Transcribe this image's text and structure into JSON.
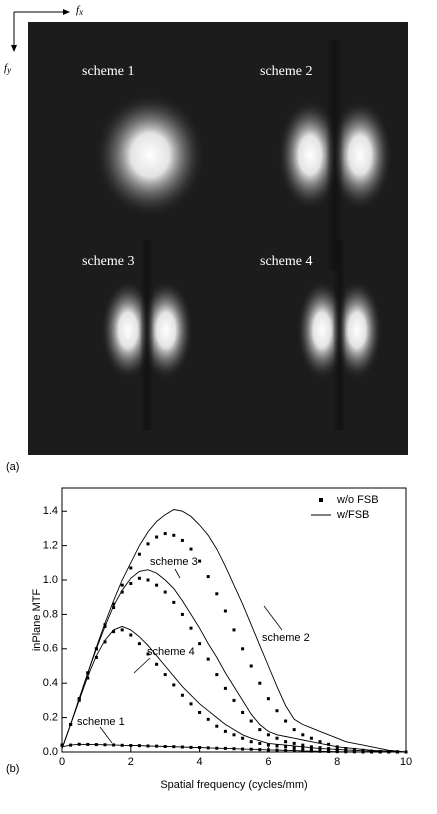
{
  "image_panel": {
    "label": "(a)",
    "x_axis": "f",
    "x_axis_sub": "x",
    "y_axis": "f",
    "y_axis_sub": "y",
    "schemes": [
      "scheme 1",
      "scheme 2",
      "scheme 3",
      "scheme 4"
    ]
  },
  "chart_data": {
    "type": "line",
    "panel_label": "(b)",
    "x_label": "Spatial frequency (cycles/mm)",
    "y_label": "inPlane MTF",
    "xlim": [
      0,
      10
    ],
    "ylim": [
      0,
      1.535
    ],
    "xticks": [
      0,
      2,
      4,
      6,
      8,
      10
    ],
    "yticks": [
      {
        "value": 0,
        "label": "0.0"
      },
      0.2,
      0.4,
      0.6,
      0.8,
      {
        "value": 1,
        "label": "1.0"
      },
      1.2,
      1.4
    ],
    "legend": "top-right",
    "annotations": [
      "scheme 1",
      "scheme 2",
      "scheme 3",
      "scheme 4"
    ],
    "x": [
      0,
      0.25,
      0.5,
      0.75,
      1,
      1.25,
      1.5,
      1.75,
      2,
      2.25,
      2.5,
      2.75,
      3,
      3.25,
      3.5,
      3.75,
      4,
      4.25,
      4.5,
      4.75,
      5,
      5.25,
      5.5,
      5.75,
      6,
      6.25,
      6.5,
      6.75,
      7,
      7.25,
      7.5,
      7.75,
      8,
      8.25,
      8.5,
      8.75,
      9,
      9.25,
      9.5,
      9.75,
      10
    ],
    "series": [
      {
        "name": "w/o FSB",
        "style": "markers",
        "color": "#000000",
        "curves": [
          [
            0.04,
            0.04,
            0.045,
            0.044,
            0.043,
            0.042,
            0.041,
            0.039,
            0.038,
            0.037,
            0.035,
            0.034,
            0.032,
            0.031,
            0.029,
            0.027,
            0.026,
            0.024,
            0.022,
            0.021,
            0.019,
            0.017,
            0.016,
            0.014,
            0.012,
            0.011,
            0.009,
            0.008,
            0.006,
            0.005,
            0.004,
            0.003,
            0.002,
            0.001,
            0.001,
            0,
            0,
            0,
            0,
            0,
            0
          ],
          [
            0.04,
            0.16,
            0.31,
            0.46,
            0.6,
            0.74,
            0.86,
            0.97,
            1.07,
            1.15,
            1.21,
            1.25,
            1.27,
            1.26,
            1.23,
            1.18,
            1.11,
            1.02,
            0.92,
            0.82,
            0.71,
            0.6,
            0.5,
            0.4,
            0.31,
            0.24,
            0.18,
            0.13,
            0.1,
            0.08,
            0.06,
            0.045,
            0.03,
            0.02,
            0.015,
            0.01,
            0.005,
            0.003,
            0.002,
            0.001,
            0
          ],
          [
            0.04,
            0.16,
            0.31,
            0.46,
            0.6,
            0.73,
            0.84,
            0.93,
            0.98,
            1.01,
            1.0,
            0.97,
            0.93,
            0.87,
            0.8,
            0.72,
            0.63,
            0.54,
            0.45,
            0.37,
            0.3,
            0.23,
            0.18,
            0.13,
            0.1,
            0.08,
            0.06,
            0.05,
            0.04,
            0.03,
            0.025,
            0.02,
            0.015,
            0.01,
            0.007,
            0.005,
            0.003,
            0.002,
            0.001,
            0.001,
            0
          ],
          [
            0.04,
            0.16,
            0.3,
            0.43,
            0.55,
            0.64,
            0.7,
            0.71,
            0.68,
            0.63,
            0.57,
            0.51,
            0.45,
            0.39,
            0.33,
            0.28,
            0.23,
            0.19,
            0.15,
            0.12,
            0.1,
            0.08,
            0.06,
            0.05,
            0.04,
            0.035,
            0.03,
            0.025,
            0.02,
            0.015,
            0.012,
            0.01,
            0.008,
            0.006,
            0.004,
            0.003,
            0.002,
            0.001,
            0.001,
            0,
            0
          ]
        ]
      },
      {
        "name": "w/FSB",
        "style": "line",
        "color": "#000000",
        "curves": [
          [
            0.03,
            0.04,
            0.045,
            0.044,
            0.043,
            0.042,
            0.041,
            0.039,
            0.038,
            0.037,
            0.035,
            0.034,
            0.032,
            0.031,
            0.029,
            0.027,
            0.026,
            0.024,
            0.022,
            0.021,
            0.019,
            0.017,
            0.016,
            0.014,
            0.012,
            0.011,
            0.009,
            0.008,
            0.006,
            0.005,
            0.004,
            0.003,
            0.002,
            0.001,
            0.001,
            0,
            0,
            0,
            0,
            0,
            0
          ],
          [
            0.02,
            0.16,
            0.31,
            0.46,
            0.61,
            0.75,
            0.88,
            1.0,
            1.1,
            1.2,
            1.28,
            1.34,
            1.38,
            1.41,
            1.4,
            1.37,
            1.32,
            1.26,
            1.18,
            1.08,
            0.97,
            0.86,
            0.74,
            0.62,
            0.5,
            0.38,
            0.27,
            0.19,
            0.16,
            0.14,
            0.12,
            0.1,
            0.08,
            0.06,
            0.05,
            0.04,
            0.03,
            0.02,
            0.01,
            0.005,
            0
          ],
          [
            0.02,
            0.16,
            0.31,
            0.46,
            0.6,
            0.73,
            0.85,
            0.94,
            1.01,
            1.05,
            1.06,
            1.04,
            1.0,
            0.95,
            0.88,
            0.8,
            0.72,
            0.63,
            0.55,
            0.46,
            0.38,
            0.3,
            0.22,
            0.16,
            0.12,
            0.1,
            0.09,
            0.08,
            0.07,
            0.06,
            0.05,
            0.04,
            0.03,
            0.025,
            0.02,
            0.015,
            0.01,
            0.007,
            0.005,
            0.002,
            0
          ],
          [
            0.02,
            0.16,
            0.3,
            0.44,
            0.56,
            0.65,
            0.71,
            0.73,
            0.71,
            0.67,
            0.62,
            0.56,
            0.5,
            0.44,
            0.38,
            0.33,
            0.28,
            0.24,
            0.2,
            0.16,
            0.13,
            0.1,
            0.08,
            0.065,
            0.05,
            0.045,
            0.04,
            0.035,
            0.03,
            0.025,
            0.02,
            0.018,
            0.015,
            0.012,
            0.01,
            0.007,
            0.005,
            0.003,
            0.002,
            0.001,
            0
          ]
        ]
      }
    ]
  }
}
